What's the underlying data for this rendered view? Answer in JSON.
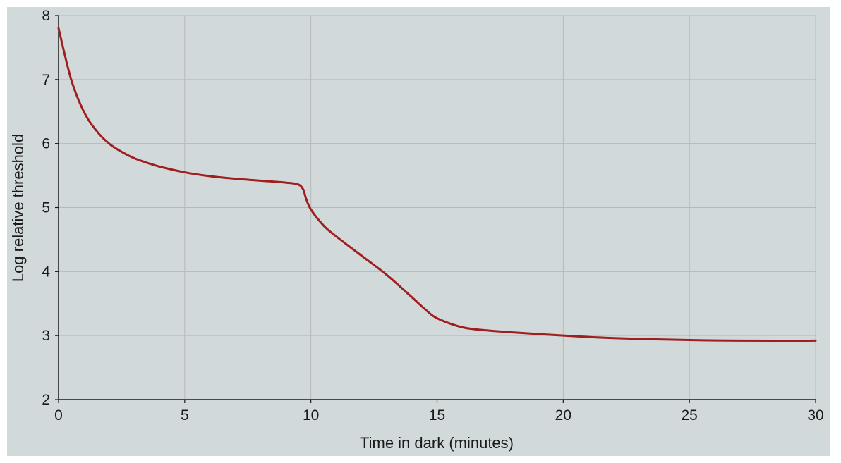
{
  "chart_data": {
    "type": "line",
    "title": "",
    "xlabel": "Time in dark (minutes)",
    "ylabel": "Log relative threshold",
    "xlim": [
      0,
      30
    ],
    "ylim": [
      2,
      8
    ],
    "xticks": [
      0,
      5,
      10,
      15,
      20,
      25,
      30
    ],
    "yticks": [
      2,
      3,
      4,
      5,
      6,
      7,
      8
    ],
    "xtick_labels": [
      "0",
      "5",
      "10",
      "15",
      "20",
      "25",
      "30"
    ],
    "ytick_labels": [
      "2",
      "3",
      "4",
      "5",
      "6",
      "7",
      "8"
    ],
    "grid": true,
    "legend": "none",
    "colors": {
      "background": "#d2d9da",
      "line": "#a01e1e",
      "grid": "#b4babb",
      "axis": "#1a1a1a"
    },
    "series": [
      {
        "x": [
          0,
          0.5,
          1,
          1.5,
          2,
          2.5,
          3,
          3.5,
          4,
          5,
          6,
          7,
          8,
          9,
          9.5,
          9.7,
          9.8,
          10,
          10.5,
          11,
          12,
          13,
          14,
          14.5,
          15,
          16,
          17,
          18,
          20,
          22,
          25,
          27,
          30
        ],
        "values": [
          7.8,
          7.0,
          6.5,
          6.2,
          6.0,
          5.87,
          5.77,
          5.7,
          5.64,
          5.55,
          5.49,
          5.45,
          5.42,
          5.39,
          5.36,
          5.28,
          5.15,
          4.97,
          4.72,
          4.55,
          4.25,
          3.95,
          3.6,
          3.42,
          3.27,
          3.13,
          3.08,
          3.05,
          3.0,
          2.96,
          2.93,
          2.92,
          2.92
        ]
      }
    ]
  }
}
